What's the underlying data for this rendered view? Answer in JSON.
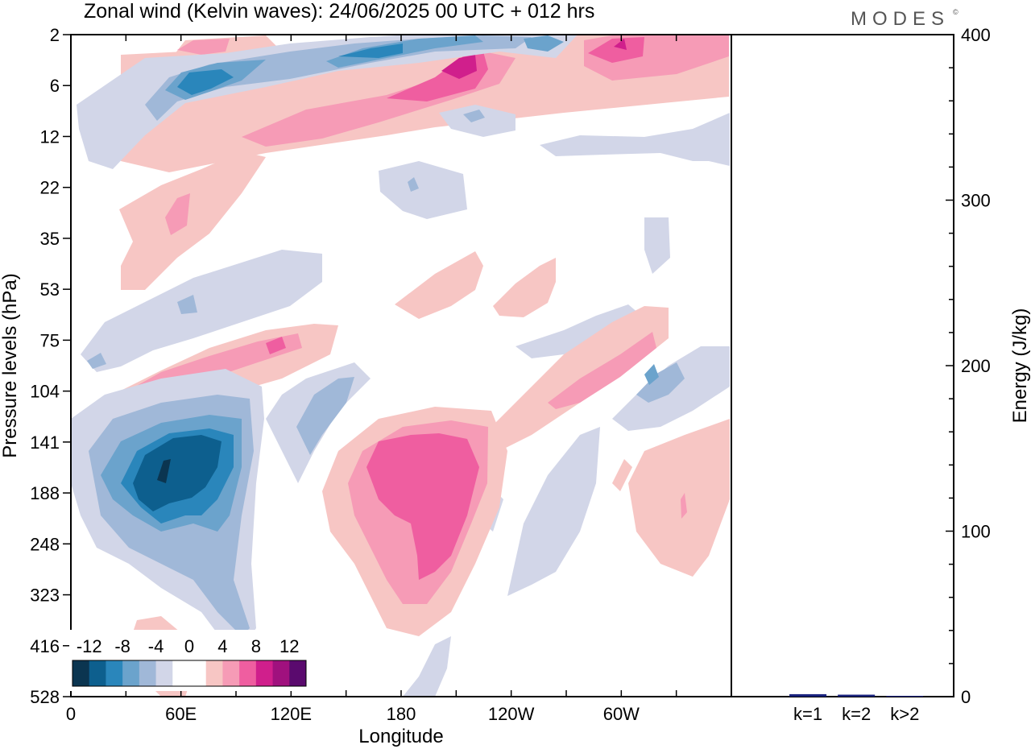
{
  "title": "Zonal wind (Kelvin waves):  24/06/2025  00 UTC  + 012 hrs",
  "brand": "MODES",
  "brand_mark": "©",
  "colors": {
    "neg6": "#0b3550",
    "neg5": "#0d5f8e",
    "neg4": "#2a86bb",
    "neg3": "#6ba3cc",
    "neg2": "#a0b8d8",
    "neg1": "#d2d6e8",
    "pos1": "#f7c6c4",
    "pos2": "#f69bb6",
    "pos3": "#ef5ea0",
    "pos4": "#d01f8c",
    "pos5": "#a0117e",
    "pos6": "#5a0a6e",
    "bar": "#1a237e",
    "axis": "#000000"
  },
  "chart_data": [
    {
      "type": "heatmap",
      "title": "Zonal wind (Kelvin waves)",
      "xlabel": "Longitude",
      "ylabel": "Pressure levels (hPa)",
      "x_ticks": [
        "0",
        "60E",
        "120E",
        "180",
        "120W",
        "60W"
      ],
      "x_tick_values": [
        0,
        60,
        120,
        180,
        240,
        300
      ],
      "xlim": [
        0,
        360
      ],
      "y_ticks": [
        "2",
        "6",
        "12",
        "22",
        "35",
        "53",
        "75",
        "104",
        "141",
        "188",
        "248",
        "323",
        "416",
        "528"
      ],
      "y_scale": "pressure levels (top = 2 hPa, bottom = 528 hPa)",
      "colorbar": {
        "labels": [
          "-12",
          "-8",
          "-4",
          "0",
          "4",
          "8",
          "12"
        ],
        "levels": [
          -12,
          -10,
          -8,
          -6,
          -4,
          -2,
          0,
          2,
          4,
          6,
          8,
          10,
          12
        ]
      },
      "features": [
        {
          "lon": 52,
          "level_index": 9.2,
          "value": -13
        },
        {
          "lon": 60,
          "level_index": 1.0,
          "value": -10
        },
        {
          "lon": 138,
          "level_index": 0.1,
          "value": -8
        },
        {
          "lon": 200,
          "level_index": 0.6,
          "value": 11
        },
        {
          "lon": 292,
          "level_index": 0.3,
          "value": 10
        },
        {
          "lon": 192,
          "level_index": 9.5,
          "value": 10
        },
        {
          "lon": 315,
          "level_index": 7.1,
          "value": -7
        },
        {
          "lon": 300,
          "level_index": 7.0,
          "value": 5
        },
        {
          "lon": 100,
          "level_index": 7.0,
          "value": 5
        }
      ]
    },
    {
      "type": "bar",
      "categories": [
        "k=1",
        "k=2",
        "k>2"
      ],
      "values": [
        1.5,
        1.2,
        0.5
      ],
      "ylabel": "Energy (J/kg)",
      "ylim": [
        0,
        400
      ],
      "y_ticks": [
        "0",
        "100",
        "200",
        "300",
        "400"
      ],
      "y_tick_values": [
        0,
        100,
        200,
        300,
        400
      ]
    }
  ]
}
